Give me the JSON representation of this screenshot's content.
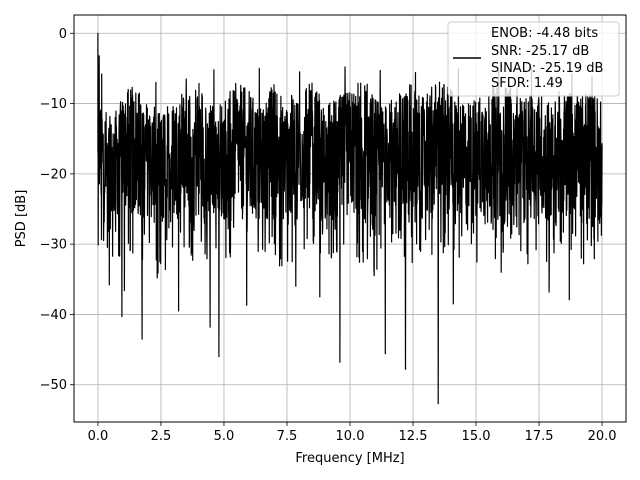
{
  "chart_data": {
    "type": "line",
    "title": "",
    "xlabel": "Frequency [MHz]",
    "ylabel": "PSD [dB]",
    "xlim": [
      -0.95,
      20.95
    ],
    "ylim": [
      -55.3,
      2.6
    ],
    "xticks": [
      0.0,
      2.5,
      5.0,
      7.5,
      10.0,
      12.5,
      15.0,
      17.5,
      20.0
    ],
    "xtick_labels": [
      "0.0",
      "2.5",
      "5.0",
      "7.5",
      "10.0",
      "12.5",
      "15.0",
      "17.5",
      "20.0"
    ],
    "yticks": [
      0,
      -10,
      -20,
      -30,
      -40,
      -50
    ],
    "ytick_labels": [
      "0",
      "−10",
      "−20",
      "−30",
      "−40",
      "−50"
    ],
    "grid": true,
    "legend_position": "top-right",
    "legend_entries": [
      "ENOB: -4.48 bits",
      "SNR: -25.17 dB",
      "SINAD: -25.19 dB",
      "SFDR: 1.49"
    ],
    "series": [
      {
        "color": "#000000",
        "band_upper": [
          -8,
          -12,
          -9,
          -7,
          -10,
          -11,
          -9,
          -8,
          -6,
          -10,
          -9,
          -7,
          -8,
          -11,
          -6,
          -9,
          -8,
          -7,
          -10,
          -9,
          -8,
          -6,
          -9,
          -10,
          -8,
          -7,
          -9,
          -6,
          -8,
          -10,
          -9,
          -7,
          -8,
          -6,
          -9,
          -8,
          -10,
          -7,
          -9,
          -8,
          -9
        ],
        "band_lower": [
          -26,
          -28,
          -25,
          -27,
          -26,
          -29,
          -27,
          -25,
          -28,
          -26,
          -27,
          -25,
          -29,
          -26,
          -27,
          -28,
          -26,
          -25,
          -27,
          -28,
          -26,
          -27,
          -29,
          -25,
          -26,
          -28,
          -27,
          -26,
          -25,
          -28,
          -27,
          -26,
          -28,
          -25,
          -27,
          -26,
          -28,
          -27,
          -26,
          -28,
          -27
        ],
        "spikes_down": [
          [
            0.15,
            -36.2
          ],
          [
            0.45,
            -35.8
          ],
          [
            0.95,
            -40.3
          ],
          [
            1.05,
            -36.6
          ],
          [
            1.75,
            -43.5
          ],
          [
            2.35,
            -34.8
          ],
          [
            3.2,
            -39.5
          ],
          [
            4.45,
            -41.8
          ],
          [
            4.8,
            -46.0
          ],
          [
            5.9,
            -38.7
          ],
          [
            7.85,
            -36.0
          ],
          [
            8.8,
            -37.5
          ],
          [
            9.6,
            -46.8
          ],
          [
            11.4,
            -45.6
          ],
          [
            12.2,
            -47.8
          ],
          [
            13.5,
            -52.7
          ],
          [
            14.1,
            -38.5
          ],
          [
            16.0,
            -34.0
          ],
          [
            17.9,
            -36.8
          ],
          [
            18.7,
            -37.9
          ]
        ],
        "spikes_up": [
          [
            0.0,
            0.0
          ],
          [
            0.05,
            -3.2
          ],
          [
            0.15,
            -5.8
          ],
          [
            1.2,
            -8.0
          ],
          [
            2.3,
            -7.0
          ],
          [
            3.5,
            -6.5
          ],
          [
            4.6,
            -5.2
          ],
          [
            6.4,
            -5.0
          ],
          [
            8.0,
            -5.5
          ],
          [
            9.8,
            -4.8
          ],
          [
            11.2,
            -5.3
          ],
          [
            12.6,
            -5.6
          ],
          [
            14.3,
            -5.0
          ],
          [
            15.9,
            -5.4
          ],
          [
            17.2,
            -4.9
          ],
          [
            18.8,
            -5.8
          ],
          [
            19.6,
            -6.2
          ]
        ]
      }
    ]
  }
}
